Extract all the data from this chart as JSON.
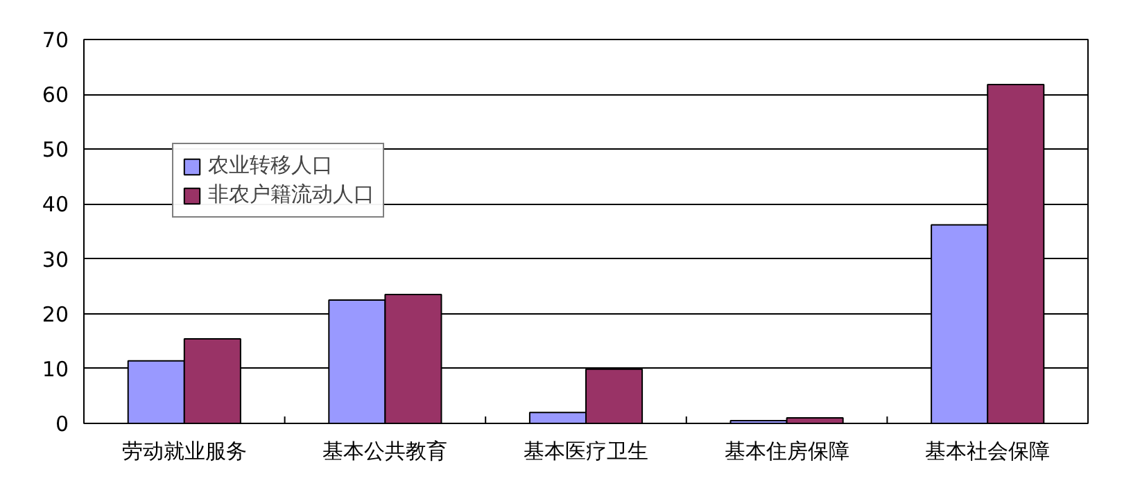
{
  "chart_data": {
    "type": "bar",
    "categories": [
      "劳动就业服务",
      "基本公共教育",
      "基本医疗卫生",
      "基本住房保障",
      "基本社会保障"
    ],
    "series": [
      {
        "name": "农业转移人口",
        "color": "#9999ff",
        "values": [
          11.4,
          22.5,
          2.0,
          0.5,
          36.2
        ]
      },
      {
        "name": "非农户籍流动人口",
        "color": "#993366",
        "values": [
          15.4,
          23.5,
          9.9,
          1.0,
          61.8
        ]
      }
    ],
    "ylim": [
      0,
      70
    ],
    "yticks": [
      0,
      10,
      20,
      30,
      40,
      50,
      60,
      70
    ],
    "grid": "y",
    "legend": "top left"
  }
}
